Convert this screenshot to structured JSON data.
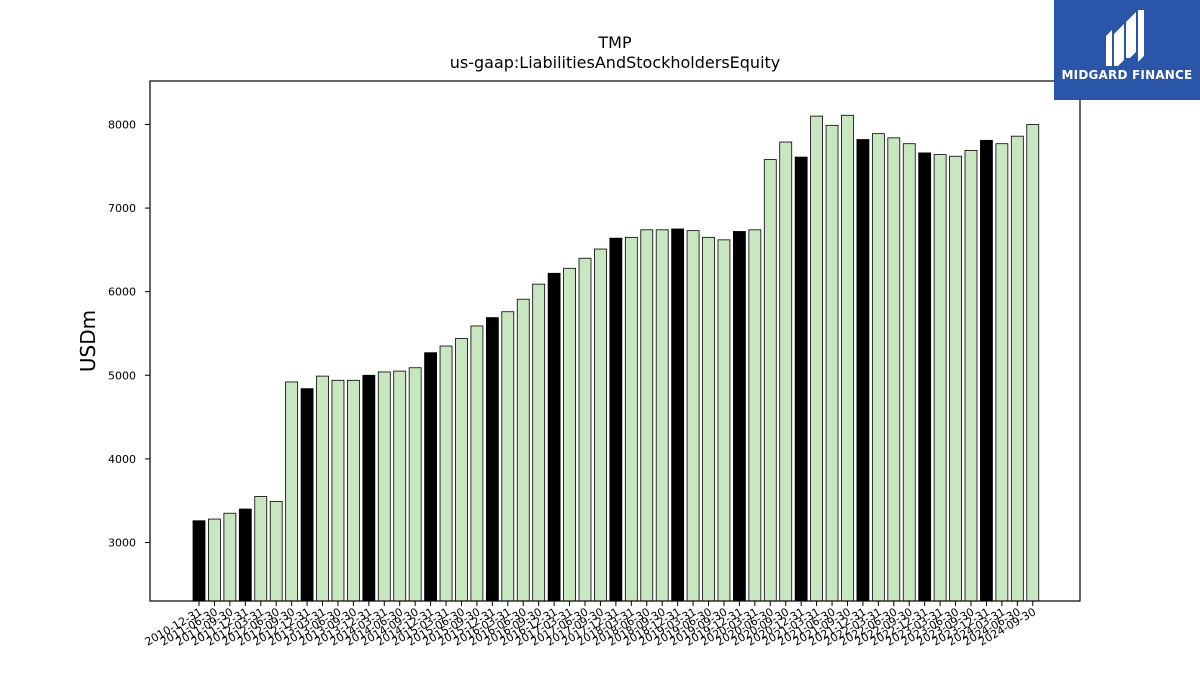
{
  "chart_data": {
    "type": "bar",
    "title": "TMP",
    "subtitle": "us-gaap:LiabilitiesAndStockholdersEquity",
    "xlabel": "",
    "ylabel": "USDm",
    "ylim": [
      2300,
      8520
    ],
    "yticks": [
      3000,
      4000,
      5000,
      6000,
      7000,
      8000
    ],
    "grid": false,
    "colors": {
      "annual": "#000000",
      "quarterly": "#c8e6c0",
      "edge": "#000000"
    },
    "categories": [
      "2010-12-31",
      "2011-06-30",
      "2011-09-30",
      "2011-12-31",
      "2012-03-31",
      "2012-06-30",
      "2012-09-30",
      "2012-12-31",
      "2013-03-31",
      "2013-06-30",
      "2013-09-30",
      "2013-12-31",
      "2014-03-31",
      "2014-06-30",
      "2014-09-30",
      "2014-12-31",
      "2015-03-31",
      "2015-06-30",
      "2015-09-30",
      "2015-12-31",
      "2016-03-31",
      "2016-06-30",
      "2016-09-30",
      "2016-12-31",
      "2017-03-31",
      "2017-06-30",
      "2017-09-30",
      "2017-12-31",
      "2018-03-31",
      "2018-06-30",
      "2018-09-30",
      "2018-12-31",
      "2019-03-31",
      "2019-06-30",
      "2019-09-30",
      "2019-12-31",
      "2020-03-31",
      "2020-06-30",
      "2020-09-30",
      "2020-12-31",
      "2021-03-31",
      "2021-06-30",
      "2021-09-30",
      "2021-12-31",
      "2022-03-31",
      "2022-06-30",
      "2022-09-30",
      "2022-12-31",
      "2023-03-31",
      "2023-06-30",
      "2023-09-30",
      "2023-12-31",
      "2024-03-31",
      "2024-06-30",
      "2024-09-30"
    ],
    "values": [
      3260,
      3280,
      3350,
      3400,
      3550,
      3490,
      4920,
      4840,
      4990,
      4940,
      4940,
      5000,
      5040,
      5050,
      5090,
      5270,
      5350,
      5440,
      5590,
      5690,
      5760,
      5910,
      6090,
      6220,
      6280,
      6400,
      6510,
      6640,
      6650,
      6740,
      6740,
      6750,
      6730,
      6650,
      6620,
      6720,
      6740,
      7580,
      7790,
      7610,
      8100,
      7990,
      8110,
      7820,
      7890,
      7840,
      7770,
      7660,
      7640,
      7620,
      7690,
      7810,
      7770,
      7860,
      8000
    ],
    "annual": [
      true,
      false,
      false,
      true,
      false,
      false,
      false,
      true,
      false,
      false,
      false,
      true,
      false,
      false,
      false,
      true,
      false,
      false,
      false,
      true,
      false,
      false,
      false,
      true,
      false,
      false,
      false,
      true,
      false,
      false,
      false,
      true,
      false,
      false,
      false,
      true,
      false,
      false,
      false,
      true,
      false,
      false,
      false,
      true,
      false,
      false,
      false,
      true,
      false,
      false,
      false,
      true,
      false,
      false,
      false
    ]
  },
  "logo": {
    "text": "MIDGARD FINANCE",
    "icon": "midgard-logo-icon"
  }
}
